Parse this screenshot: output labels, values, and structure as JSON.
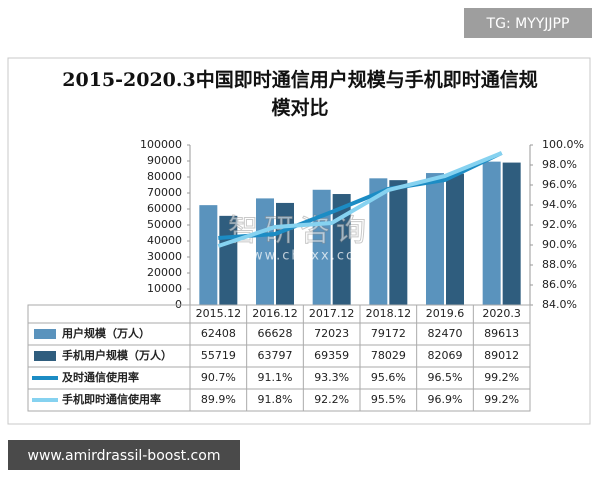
{
  "chart_data": {
    "type": "bar-line-table",
    "title": "2015-2020.3中国即时通信用户规模与手机即时通信规模对比",
    "categories": [
      "2015.12",
      "2016.12",
      "2017.12",
      "2018.12",
      "2019.6",
      "2020.3"
    ],
    "series": [
      {
        "name": "用户规模（万人）",
        "type": "bar",
        "color": "#5a93bd",
        "values": [
          62408,
          66628,
          72023,
          79172,
          82470,
          89613
        ]
      },
      {
        "name": "手机用户规模（万人）",
        "type": "bar",
        "color": "#2f5d7e",
        "values": [
          55719,
          63797,
          69359,
          78029,
          82069,
          89012
        ]
      },
      {
        "name": "及时通信使用率",
        "type": "line",
        "axis": "y2",
        "color": "#1c8cc4",
        "values": [
          90.7,
          91.1,
          93.3,
          95.6,
          96.5,
          99.2
        ],
        "value_labels": [
          "90.7%",
          "91.1%",
          "93.3%",
          "95.6%",
          "96.5%",
          "99.2%"
        ]
      },
      {
        "name": "手机即时通信使用率",
        "type": "line",
        "axis": "y2",
        "color": "#86d2f0",
        "values": [
          89.9,
          91.8,
          92.2,
          95.5,
          96.9,
          99.2
        ],
        "value_labels": [
          "89.9%",
          "91.8%",
          "92.2%",
          "95.5%",
          "96.9%",
          "99.2%"
        ]
      }
    ],
    "ylim": [
      0,
      100000
    ],
    "yticks": [
      0,
      10000,
      20000,
      30000,
      40000,
      50000,
      60000,
      70000,
      80000,
      90000,
      100000
    ],
    "y2lim": [
      84,
      100
    ],
    "y2ticks": [
      {
        "value": 84,
        "label": "84.0%"
      },
      {
        "value": 86,
        "label": "86.0%"
      },
      {
        "value": 88,
        "label": "88.0%"
      },
      {
        "value": 90,
        "label": "90.0%"
      },
      {
        "value": 92,
        "label": "92.0%"
      },
      {
        "value": 94,
        "label": "94.0%"
      },
      {
        "value": 96,
        "label": "96.0%"
      },
      {
        "value": 98,
        "label": "98.0%"
      },
      {
        "value": 100,
        "label": "100.0%"
      }
    ]
  },
  "watermarks": {
    "logo": "智研咨询",
    "site": "www.chyxx.com",
    "tag": "TG: MYYJJPP",
    "footer": "www.amirdrassil-boost.com"
  }
}
